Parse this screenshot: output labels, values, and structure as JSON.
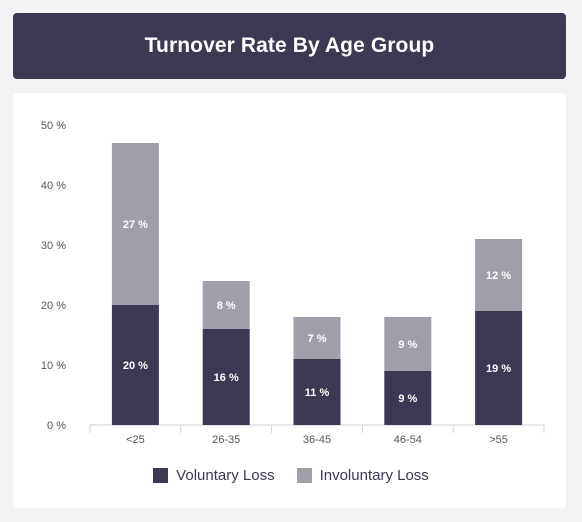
{
  "title": "Turnover Rate By Age Group",
  "colors": {
    "header_bg": "#3e3953",
    "voluntary": "#3e3953",
    "involuntary": "#a09ea8",
    "axis_text": "#555555",
    "axis_line": "#cfcfd6"
  },
  "chart_data": {
    "type": "bar",
    "stacked": true,
    "categories": [
      "<25",
      "26-35",
      "36-45",
      "46-54",
      ">55"
    ],
    "series": [
      {
        "name": "Voluntary Loss",
        "values": [
          20,
          16,
          11,
          9,
          19
        ],
        "labels": [
          "20 %",
          "16 %",
          "11 %",
          "9 %",
          "19 %"
        ]
      },
      {
        "name": "Involuntary Loss",
        "values": [
          27,
          8,
          7,
          9,
          12
        ],
        "labels": [
          "27 %",
          "8 %",
          "7 %",
          "9 %",
          "12 %"
        ]
      }
    ],
    "yticks": [
      "0 %",
      "10 %",
      "20 %",
      "30 %",
      "40 %",
      "50 %"
    ],
    "ylim": [
      0,
      50
    ],
    "legend": "bottom-center",
    "grid": false
  },
  "legend": {
    "voluntary_label": "Voluntary Loss",
    "involuntary_label": "Involuntary Loss"
  }
}
